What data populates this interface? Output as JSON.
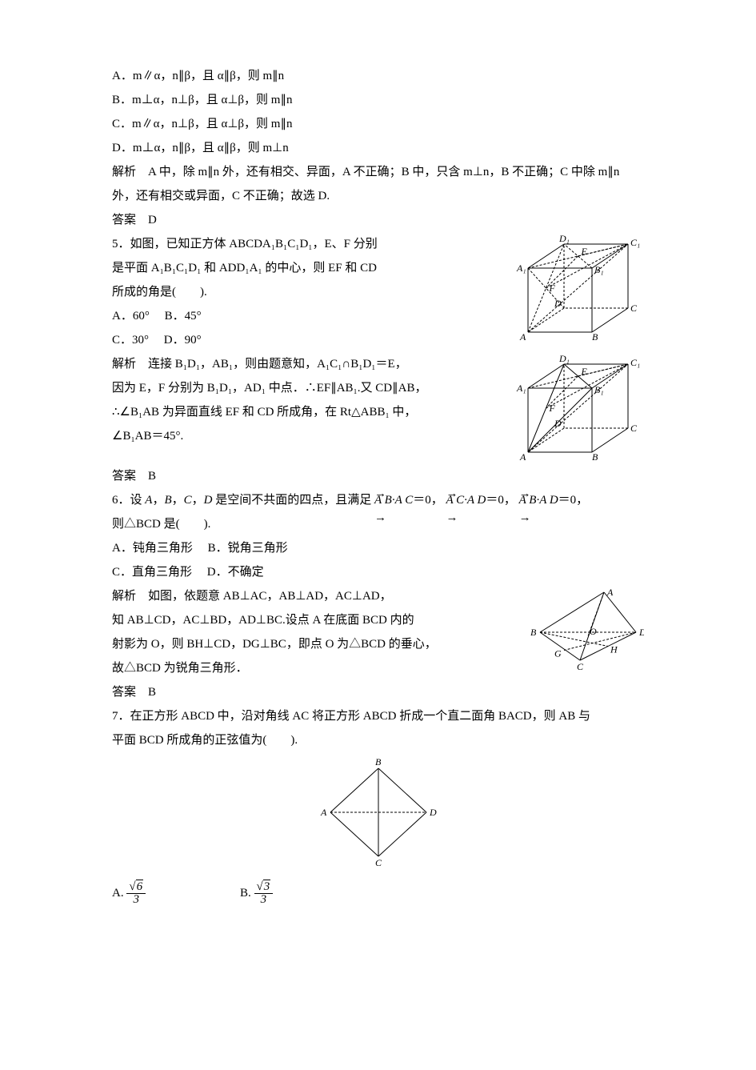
{
  "q4": {
    "optA": "A．m∥α，n∥β，且 α∥β，则 m∥n",
    "optB": "B．m⊥α，n⊥β，且 α⊥β，则 m∥n",
    "optC": "C．m∥α，n⊥β，且 α⊥β，则 m∥n",
    "optD": "D．m⊥α，n∥β，且 α∥β，则 m⊥n",
    "analysis": "解析　A 中，除 m∥n 外，还有相交、异面，A 不正确；B 中，只含 m⊥n，B 不正确；C 中除 m∥n 外，还有相交或异面，C 不正确；故选 D.",
    "answer": "答案　D"
  },
  "q5": {
    "stem1": "5．如图，已知正方体 ABCDA₁B₁C₁D₁，E、F 分别",
    "stem2": "是平面 A₁B₁C₁D₁ 和 ADD₁A₁ 的中心，则 EF 和 CD",
    "stem3": "所成的角是(　　).",
    "optA": "A．60°",
    "optB": "B．45°",
    "optC": "C．30°",
    "optD": "D．90°",
    "analysis1": "解析　连接 B₁D₁，AB₁，则由题意知，A₁C₁∩B₁D₁＝E，",
    "analysis2": "因为 E，F 分别为 B₁D₁，AD₁ 中点．∴EF∥AB₁.又 CD∥AB，",
    "analysis3": "∴∠B₁AB 为异面直线 EF 和 CD 所成角，在 Rt△ABB₁ 中，",
    "analysis4": "∠B₁AB＝45°.",
    "answer": "答案　B"
  },
  "q6": {
    "stem1": "6．设 A，B，C，D 是空间不共面的四点，且满足 A B · A C＝0，A C · A D＝0，A B · A D＝0，",
    "stem2": "则△BCD 是(　　).",
    "optA": "A．钝角三角形",
    "optB": "B．锐角三角形",
    "optC": "C．直角三角形",
    "optD": "D．不确定",
    "analysis1": "解析　如图，依题意 AB⊥AC，AB⊥AD，AC⊥AD，",
    "analysis2": "知 AB⊥CD，AC⊥BD，AD⊥BC.设点 A 在底面 BCD 内的",
    "analysis3": "射影为 O，则 BH⊥CD，DG⊥BC，即点 O 为△BCD 的垂心，",
    "analysis4": "故△BCD 为锐角三角形．",
    "answer": "答案　B"
  },
  "q7": {
    "stem1": "7．在正方形 ABCD 中，沿对角线 AC 将正方形 ABCD 折成一个直二面角 BACD，则 AB 与",
    "stem2": "平面 BCD 所成角的正弦值为(　　).",
    "optA_prefix": "A.",
    "optA_num": "√6",
    "optA_den": "3",
    "optB_prefix": "B.",
    "optB_num": "√3",
    "optB_den": "3"
  },
  "fig5a": {
    "labels": {
      "A": "A",
      "B": "B",
      "C": "C",
      "D": "D",
      "A1": "A₁",
      "B1": "B₁",
      "C1": "C₁",
      "D1": "D₁",
      "E": "E",
      "F": "F"
    },
    "stroke": "#000",
    "dash": "3,2",
    "font": "italic 11px Times"
  },
  "fig5b": {
    "labels": {
      "A": "A",
      "B": "B",
      "C": "C",
      "D": "D",
      "A1": "A₁",
      "B1": "B₁",
      "C1": "C₁",
      "D1": "D₁",
      "E": "E",
      "F": "F"
    },
    "stroke": "#000",
    "dash": "3,2",
    "font": "italic 11px Times"
  },
  "fig6": {
    "labels": {
      "A": "A",
      "B": "B",
      "C": "C",
      "D": "D",
      "G": "G",
      "O": "O",
      "H": "H"
    },
    "stroke": "#000",
    "dash": "3,2",
    "font": "italic 11px Times"
  },
  "fig7": {
    "labels": {
      "A": "A",
      "B": "B",
      "C": "C",
      "D": "D"
    },
    "stroke": "#000",
    "dash": "3,2",
    "font": "italic 11px Times"
  }
}
